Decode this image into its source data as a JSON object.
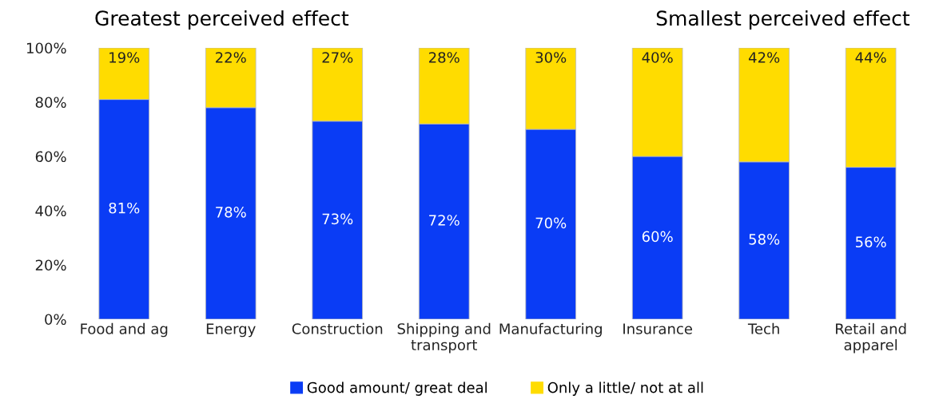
{
  "chart_data": {
    "type": "bar",
    "stacked": true,
    "categories": [
      "Food and ag",
      "Energy",
      "Construction",
      "Shipping and\ntransport",
      "Manufacturing",
      "Insurance",
      "Tech",
      "Retail and\napparel"
    ],
    "series": [
      {
        "name": "Good amount/ great deal",
        "color": "#0a3cf5",
        "values": [
          81,
          78,
          73,
          72,
          70,
          60,
          58,
          56
        ]
      },
      {
        "name": "Only a little/ not at all",
        "color": "#ffdc00",
        "values": [
          19,
          22,
          27,
          28,
          30,
          40,
          42,
          44
        ]
      }
    ],
    "ylim": [
      0,
      100
    ],
    "yticks": [
      {
        "value": 0,
        "label": "0%"
      },
      {
        "value": 20,
        "label": "20%"
      },
      {
        "value": 40,
        "label": "40%"
      },
      {
        "value": 60,
        "label": "60%"
      },
      {
        "value": 80,
        "label": "80%"
      },
      {
        "value": 100,
        "label": "100%"
      }
    ],
    "value_labels": [
      [
        "81%",
        "78%",
        "73%",
        "72%",
        "70%",
        "60%",
        "58%",
        "56%"
      ],
      [
        "19%",
        "22%",
        "27%",
        "28%",
        "30%",
        "40%",
        "42%",
        "44%"
      ]
    ],
    "annotations": [
      "Greatest perceived effect",
      "Smallest perceived effect"
    ],
    "grid": false,
    "legend": "bottom"
  }
}
